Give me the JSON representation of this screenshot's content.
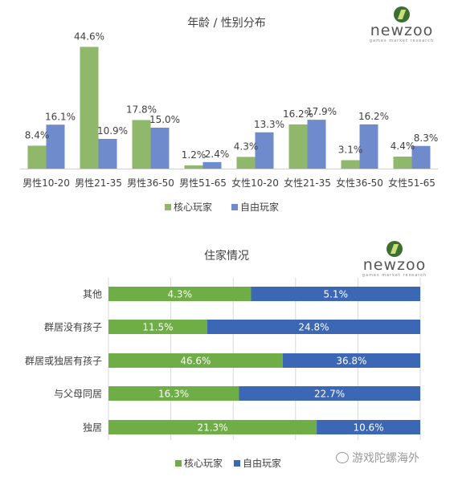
{
  "logo": {
    "word": "newzoo",
    "tagline": "games market research"
  },
  "watermark": {
    "text": "游戏陀螺海外",
    "icon": "wechat-icon"
  },
  "colors": {
    "core": "#8fb86a",
    "free": "#6f8bcc",
    "core2": "#6fad46",
    "free2": "#3c67b5"
  },
  "chart_data": [
    {
      "type": "bar",
      "title": "年龄 / 性别分布",
      "categories": [
        "男性10-20",
        "男性21-35",
        "男性36-50",
        "男性51-65",
        "女性10-20",
        "女性21-35",
        "女性36-50",
        "女性51-65"
      ],
      "series": [
        {
          "name": "核心玩家",
          "values": [
            8.4,
            44.6,
            17.8,
            1.2,
            4.3,
            16.2,
            3.1,
            4.4
          ],
          "labels": [
            "8.4%",
            "44.6%",
            "17.8%",
            "1.2%",
            "4.3%",
            "16.2%",
            "3.1%",
            "4.4%"
          ]
        },
        {
          "name": "自由玩家",
          "values": [
            16.1,
            10.9,
            15.0,
            2.4,
            13.3,
            17.9,
            16.2,
            8.3
          ],
          "labels": [
            "16.1%",
            "10.9%",
            "15.0%",
            "2.4%",
            "13.3%",
            "17.9%",
            "16.2%",
            "8.3%"
          ]
        }
      ],
      "ylim": [
        0,
        50
      ],
      "grid": false,
      "legend": "bottom"
    },
    {
      "type": "bar",
      "orientation": "horizontal",
      "stacked": true,
      "title": "住家情况",
      "categories": [
        "其他",
        "群居没有孩子",
        "群居或独居有孩子",
        "与父母同居",
        "独居"
      ],
      "series": [
        {
          "name": "核心玩家",
          "values": [
            4.3,
            11.5,
            46.6,
            16.3,
            21.3
          ],
          "labels": [
            "4.3%",
            "11.5%",
            "46.6%",
            "16.3%",
            "21.3%"
          ]
        },
        {
          "name": "自由玩家",
          "values": [
            5.1,
            24.8,
            36.8,
            22.7,
            10.6
          ],
          "labels": [
            "5.1%",
            "24.8%",
            "36.8%",
            "22.7%",
            "10.6%"
          ]
        }
      ],
      "grid": true,
      "legend": "bottom"
    }
  ]
}
